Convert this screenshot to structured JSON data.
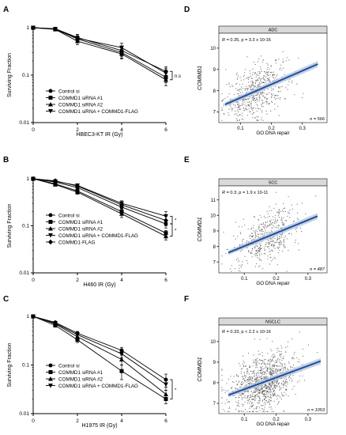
{
  "chart_data": [
    {
      "panel": "A",
      "type": "line",
      "xlabel": "HBEC3-KT IR (Gy)",
      "ylabel": "Surviving Fraction",
      "xlim": [
        0,
        6
      ],
      "ylim": [
        0.01,
        1
      ],
      "yscale": "log",
      "xticks": [
        "0",
        "2",
        "4",
        "6"
      ],
      "yticks": [
        "1",
        "0.1",
        "0.01"
      ],
      "x": [
        0,
        1,
        2,
        4,
        6
      ],
      "series": [
        {
          "name": "Control si",
          "marker": "circle",
          "values": [
            1,
            0.95,
            0.62,
            0.33,
            0.12
          ],
          "err": [
            0,
            0.03,
            0.1,
            0.08,
            0.03
          ]
        },
        {
          "name": "COMMD1 siRNA #1",
          "marker": "square",
          "values": [
            1,
            0.93,
            0.58,
            0.3,
            0.09
          ],
          "err": [
            0,
            0.03,
            0.1,
            0.07,
            0.02
          ]
        },
        {
          "name": "COMMD1 siRNA #2",
          "marker": "triangle-up",
          "values": [
            1,
            0.92,
            0.52,
            0.28,
            0.08
          ],
          "err": [
            0,
            0.03,
            0.08,
            0.06,
            0.02
          ]
        },
        {
          "name": "COMMD1 siRNA + COMMD1-FLAG",
          "marker": "triangle-down",
          "values": [
            1,
            0.94,
            0.6,
            0.38,
            0.11
          ],
          "err": [
            0,
            0.03,
            0.12,
            0.09,
            0.03
          ]
        }
      ],
      "annotation": "n.s"
    },
    {
      "panel": "B",
      "type": "line",
      "xlabel": "H460 IR (Gy)",
      "ylabel": "Surviving Fraction",
      "xlim": [
        0,
        6
      ],
      "ylim": [
        0.01,
        1
      ],
      "yscale": "log",
      "xticks": [
        "0",
        "2",
        "4",
        "6"
      ],
      "yticks": [
        "1",
        "0.1",
        "0.01"
      ],
      "x": [
        0,
        1,
        2,
        4,
        6
      ],
      "series": [
        {
          "name": "Control si",
          "marker": "circle",
          "values": [
            1,
            0.85,
            0.65,
            0.25,
            0.11
          ],
          "err": [
            0,
            0.03,
            0.05,
            0.03,
            0.02
          ]
        },
        {
          "name": "COMMD1 siRNA #1",
          "marker": "square",
          "values": [
            1,
            0.78,
            0.55,
            0.2,
            0.07
          ],
          "err": [
            0,
            0.03,
            0.05,
            0.03,
            0.01
          ]
        },
        {
          "name": "COMMD1 siRNA #2",
          "marker": "triangle-up",
          "values": [
            1,
            0.75,
            0.52,
            0.18,
            0.06
          ],
          "err": [
            0,
            0.03,
            0.05,
            0.03,
            0.01
          ]
        },
        {
          "name": "COMMD1 siRNA + COMMD1-FLAG",
          "marker": "triangle-down",
          "values": [
            1,
            0.88,
            0.72,
            0.3,
            0.16
          ],
          "err": [
            0,
            0.03,
            0.05,
            0.04,
            0.04
          ]
        },
        {
          "name": "COMMD1-FLAG",
          "marker": "diamond",
          "values": [
            1,
            0.9,
            0.7,
            0.28,
            0.13
          ],
          "err": [
            0,
            0.03,
            0.05,
            0.04,
            0.03
          ]
        }
      ],
      "annotations": [
        "*",
        "*"
      ]
    },
    {
      "panel": "C",
      "type": "line",
      "xlabel": "H1975 IR (Gy)",
      "ylabel": "Surviving Fraction",
      "xlim": [
        0,
        6
      ],
      "ylim": [
        0.01,
        1
      ],
      "yscale": "log",
      "xticks": [
        "0",
        "2",
        "4",
        "6"
      ],
      "yticks": [
        "1",
        "0.1",
        "0.01"
      ],
      "x": [
        0,
        1,
        2,
        4,
        6
      ],
      "series": [
        {
          "name": "Control si",
          "marker": "circle",
          "values": [
            1,
            0.75,
            0.45,
            0.2,
            0.05
          ],
          "err": [
            0,
            0.03,
            0.04,
            0.03,
            0.015
          ]
        },
        {
          "name": "COMMD1 siRNA #1",
          "marker": "square",
          "values": [
            1,
            0.65,
            0.33,
            0.075,
            0.02
          ],
          "err": [
            0,
            0.03,
            0.04,
            0.025,
            0.004
          ]
        },
        {
          "name": "COMMD1 siRNA #2",
          "marker": "triangle-up",
          "values": [
            1,
            0.7,
            0.38,
            0.13,
            0.025
          ],
          "err": [
            0,
            0.03,
            0.04,
            0.03,
            0.005
          ]
        },
        {
          "name": "COMMD1 siRNA + COMMD1-FLAG",
          "marker": "triangle-down",
          "values": [
            1,
            0.72,
            0.42,
            0.17,
            0.04
          ],
          "err": [
            0,
            0.03,
            0.04,
            0.03,
            0.01
          ]
        }
      ],
      "annotation": "*"
    },
    {
      "panel": "D",
      "type": "scatter",
      "strip_title": "ADC",
      "stat_prefix": "R",
      "stat_value": "= 0.35, p = 3.3  x 10-16",
      "xlabel": "GO DNA repair",
      "ylabel": "COMMD1",
      "xlim": [
        0.03,
        0.38
      ],
      "ylim": [
        6.5,
        10.7
      ],
      "xticks": [
        "0.1",
        "0.2",
        "0.3"
      ],
      "yticks": [
        "7",
        "8",
        "9",
        "10"
      ],
      "n_label": "n = 566",
      "n": 566,
      "mean_x": 0.15,
      "sd_x": 0.06,
      "mean_y": 8.1,
      "sd_y": 0.6,
      "fit": {
        "x": [
          0.05,
          0.35
        ],
        "y": [
          7.35,
          9.25
        ]
      }
    },
    {
      "panel": "E",
      "type": "scatter",
      "strip_title": "SCC",
      "stat_prefix": "R",
      "stat_value": "= 0.3, p = 1.9  x 10-11",
      "xlabel": "GO DNA repair",
      "ylabel": "COMMD1",
      "xlim": [
        0.02,
        0.36
      ],
      "ylim": [
        6.3,
        11.9
      ],
      "xticks": [
        "0.1",
        "0.2",
        "0.3"
      ],
      "yticks": [
        "7",
        "8",
        "9",
        "10",
        "11"
      ],
      "n_label": "n = 487",
      "n": 487,
      "mean_x": 0.17,
      "sd_x": 0.06,
      "mean_y": 8.7,
      "sd_y": 0.8,
      "fit": {
        "x": [
          0.05,
          0.33
        ],
        "y": [
          7.6,
          9.95
        ]
      }
    },
    {
      "panel": "F",
      "type": "scatter",
      "strip_title": "NSCLC",
      "stat_prefix": "R",
      "stat_value": "= 0.33, p < 2.2  x 10-16",
      "xlabel": "GO DNA repair",
      "ylabel": "COMMD1",
      "xlim": [
        0.02,
        0.36
      ],
      "ylim": [
        6.5,
        10.8
      ],
      "xticks": [
        "0.1",
        "0.2",
        "0.3"
      ],
      "yticks": [
        "7",
        "8",
        "9",
        "10"
      ],
      "n_label": "n = 1053",
      "n": 1053,
      "mean_x": 0.16,
      "sd_x": 0.06,
      "mean_y": 8.3,
      "sd_y": 0.65,
      "fit": {
        "x": [
          0.05,
          0.34
        ],
        "y": [
          7.4,
          9.05
        ]
      }
    }
  ],
  "panel_letters": [
    "A",
    "B",
    "C",
    "D",
    "E",
    "F"
  ],
  "colors": {
    "fit_line": "#1f4e9c",
    "ci_band": "#b8c8e0",
    "points": "#444444",
    "strip": "#d9d9d9"
  }
}
